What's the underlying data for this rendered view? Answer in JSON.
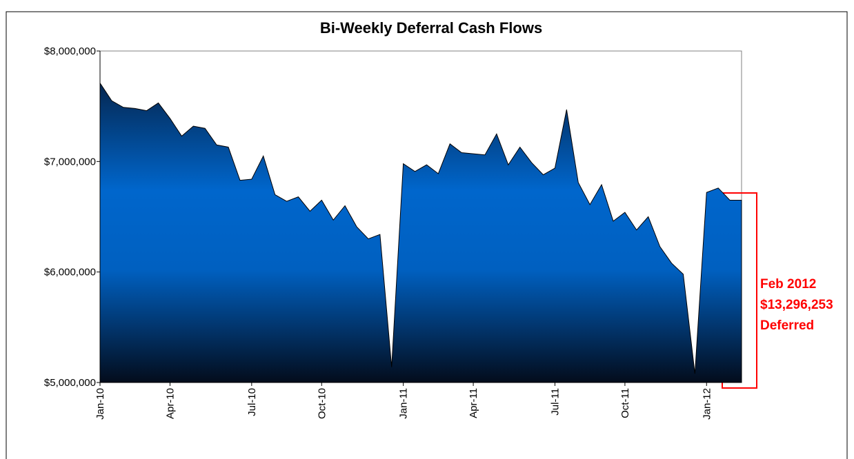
{
  "chart_data": {
    "type": "area",
    "title": "Bi-Weekly Deferral Cash Flows",
    "categories": [
      "Jan-10",
      null,
      null,
      null,
      null,
      null,
      "Apr-10",
      null,
      null,
      null,
      null,
      null,
      null,
      "Jul-10",
      null,
      null,
      null,
      null,
      null,
      "Oct-10",
      null,
      null,
      null,
      null,
      null,
      null,
      "Jan-11",
      null,
      null,
      null,
      null,
      null,
      "Apr-11",
      null,
      null,
      null,
      null,
      null,
      null,
      "Jul-11",
      null,
      null,
      null,
      null,
      null,
      "Oct-11",
      null,
      null,
      null,
      null,
      null,
      null,
      "Jan-12",
      null,
      null,
      null
    ],
    "values": [
      7710000,
      7550000,
      7490000,
      7480000,
      7460000,
      7530000,
      7390000,
      7230000,
      7320000,
      7300000,
      7150000,
      7130000,
      6830000,
      6840000,
      7050000,
      6700000,
      6640000,
      6680000,
      6550000,
      6650000,
      6470000,
      6600000,
      6410000,
      6300000,
      6340000,
      5140000,
      6980000,
      6910000,
      6970000,
      6890000,
      7160000,
      7080000,
      7070000,
      7060000,
      7250000,
      6970000,
      7130000,
      6990000,
      6880000,
      6940000,
      7470000,
      6810000,
      6610000,
      6790000,
      6460000,
      6540000,
      6380000,
      6500000,
      6230000,
      6080000,
      5980000,
      5080000,
      6720000,
      6760000,
      6650000,
      6650000
    ],
    "color": "#0066cc",
    "ylim": [
      5000000,
      8000000
    ],
    "yticks": [
      {
        "value": 5000000,
        "label": "$5,000,000"
      },
      {
        "value": 6000000,
        "label": "$6,000,000"
      },
      {
        "value": 7000000,
        "label": "$7,000,000"
      },
      {
        "value": 8000000,
        "label": "$8,000,000"
      }
    ],
    "annotation": [
      "Feb 2012",
      "$13,296,253",
      "Deferred"
    ]
  }
}
